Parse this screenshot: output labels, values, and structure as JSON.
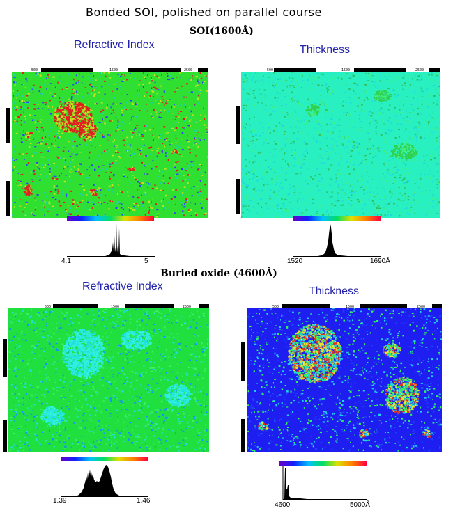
{
  "header": {
    "title": "Bonded  SOI,  polished  on  parallel  course",
    "layer1": "SOI(1600Å)",
    "layer2": "Buried oxide (4600Å)"
  },
  "panels": [
    {
      "title": "Refractive Index",
      "ruler_ticks": [
        "500",
        "1500",
        "2500"
      ],
      "hist_min": "4.1",
      "hist_max": "5",
      "map": {
        "base": "#30e030",
        "speckle": [
          "#c8e020",
          "#20d0b0",
          "#e02020",
          "#3040ff"
        ],
        "blobs": "#e02020"
      }
    },
    {
      "title": "Thickness",
      "ruler_ticks": [
        "500",
        "1500",
        "2500"
      ],
      "hist_min": "1520",
      "hist_max": "1690Å",
      "map": {
        "base": "#28f0c0",
        "speckle": [
          "#40f080",
          "#20d8e0",
          "#30c060"
        ],
        "blobs": "#30d050"
      }
    },
    {
      "title": "Refractive Index",
      "ruler_ticks": [
        "500",
        "1500",
        "2500"
      ],
      "hist_min": "1.39",
      "hist_max": "1.46",
      "map": {
        "base": "#20e040",
        "speckle": [
          "#20e0e0",
          "#40f060",
          "#1890ff"
        ],
        "blobs": "#30f0e0"
      }
    },
    {
      "title": "Thickness",
      "ruler_ticks": [
        "500",
        "1500",
        "2500"
      ],
      "hist_min": "4600",
      "hist_max": "5000Å",
      "map": {
        "base": "#1e1ef0",
        "speckle": [
          "#2040ff",
          "#20d0f0",
          "#30f060"
        ],
        "blobs": "#e03020"
      }
    }
  ]
}
